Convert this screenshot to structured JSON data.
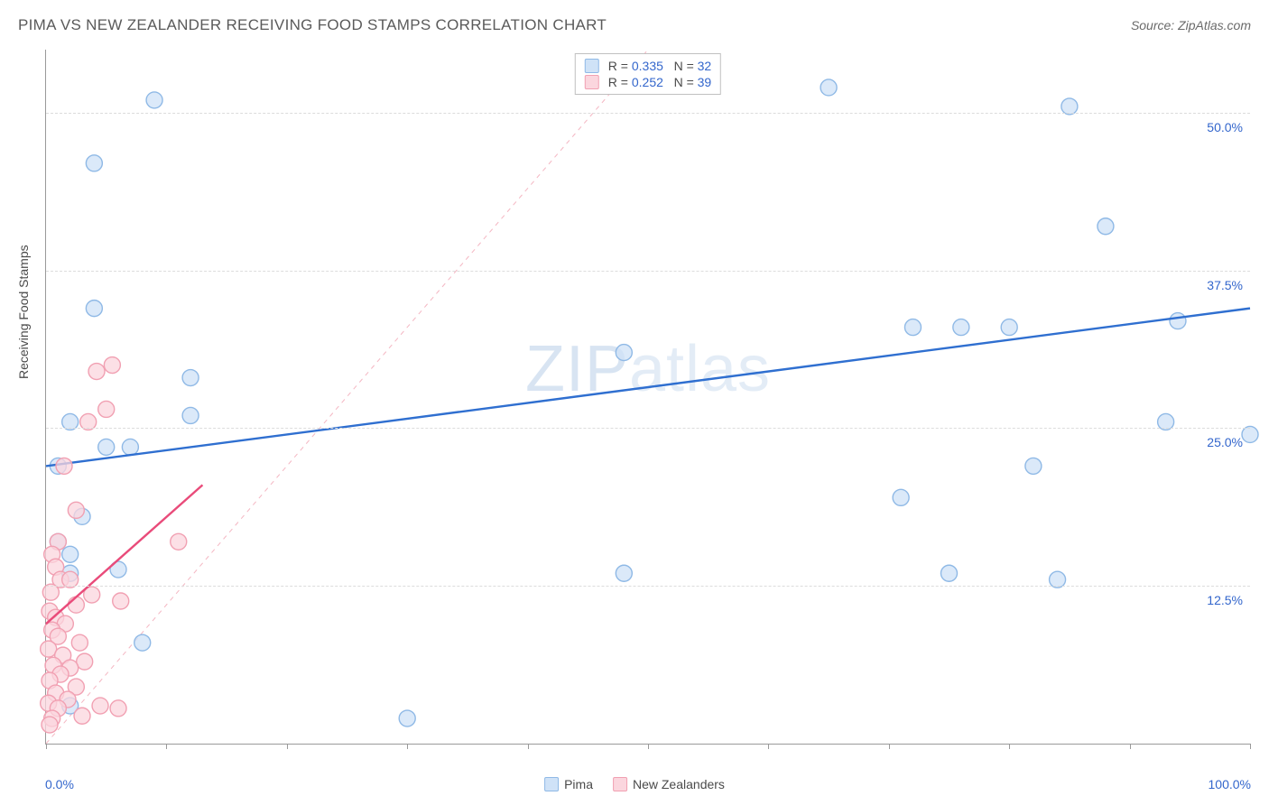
{
  "header": {
    "title": "PIMA VS NEW ZEALANDER RECEIVING FOOD STAMPS CORRELATION CHART",
    "source": "Source: ZipAtlas.com"
  },
  "watermark": {
    "bold": "ZIP",
    "light": "atlas"
  },
  "chart": {
    "type": "scatter",
    "ylabel": "Receiving Food Stamps",
    "xlim": [
      0,
      100
    ],
    "ylim": [
      0,
      55
    ],
    "background_color": "#ffffff",
    "grid_color": "#dcdcdc",
    "axis_color": "#9a9a9a",
    "marker_radius": 9,
    "marker_stroke_width": 1.4,
    "yticks": [
      {
        "value": 12.5,
        "label": "12.5%"
      },
      {
        "value": 25.0,
        "label": "25.0%"
      },
      {
        "value": 37.5,
        "label": "37.5%"
      },
      {
        "value": 50.0,
        "label": "50.0%"
      }
    ],
    "xticks_count": 11,
    "xaxis_labels": {
      "left": "0.0%",
      "right": "100.0%"
    },
    "series": [
      {
        "key": "pima",
        "name": "Pima",
        "fill": "#cfe2f7",
        "stroke": "#8fb9e6",
        "line_color": "#2f6fd0",
        "line_width": 2.4,
        "correlation_label": {
          "r": "0.335",
          "n": "32"
        },
        "regression": {
          "x1": 0,
          "y1": 22.0,
          "x2": 100,
          "y2": 34.5
        },
        "reference_line": {
          "x1": 0,
          "y1": 0,
          "x2": 50,
          "y2": 55,
          "color": "#f4b6c2",
          "dash": "5,5",
          "width": 1
        },
        "points": [
          {
            "x": 72,
            "y": 33
          },
          {
            "x": 76,
            "y": 33
          },
          {
            "x": 80,
            "y": 33
          },
          {
            "x": 94,
            "y": 33.5
          },
          {
            "x": 100,
            "y": 24.5
          },
          {
            "x": 93,
            "y": 25.5
          },
          {
            "x": 82,
            "y": 22
          },
          {
            "x": 71,
            "y": 19.5
          },
          {
            "x": 88,
            "y": 41
          },
          {
            "x": 85,
            "y": 50.5
          },
          {
            "x": 65,
            "y": 52
          },
          {
            "x": 84,
            "y": 13
          },
          {
            "x": 75,
            "y": 13.5
          },
          {
            "x": 48,
            "y": 13.5
          },
          {
            "x": 48,
            "y": 31
          },
          {
            "x": 9,
            "y": 51
          },
          {
            "x": 4,
            "y": 46
          },
          {
            "x": 4,
            "y": 34.5
          },
          {
            "x": 12,
            "y": 29
          },
          {
            "x": 12,
            "y": 26
          },
          {
            "x": 7,
            "y": 23.5
          },
          {
            "x": 5,
            "y": 23.5
          },
          {
            "x": 1,
            "y": 22
          },
          {
            "x": 3,
            "y": 18
          },
          {
            "x": 6,
            "y": 13.8
          },
          {
            "x": 2,
            "y": 13.5
          },
          {
            "x": 2,
            "y": 15
          },
          {
            "x": 1,
            "y": 16
          },
          {
            "x": 8,
            "y": 8
          },
          {
            "x": 30,
            "y": 2
          },
          {
            "x": 2,
            "y": 3
          },
          {
            "x": 2,
            "y": 25.5
          }
        ]
      },
      {
        "key": "nz",
        "name": "New Zealanders",
        "fill": "#fbd6de",
        "stroke": "#f1a0b2",
        "line_color": "#e94b7a",
        "line_width": 2.4,
        "correlation_label": {
          "r": "0.252",
          "n": "39"
        },
        "regression": {
          "x1": 0,
          "y1": 9.5,
          "x2": 13,
          "y2": 20.5
        },
        "points": [
          {
            "x": 5.5,
            "y": 30
          },
          {
            "x": 4.2,
            "y": 29.5
          },
          {
            "x": 1.5,
            "y": 22
          },
          {
            "x": 3.5,
            "y": 25.5
          },
          {
            "x": 5,
            "y": 26.5
          },
          {
            "x": 2.5,
            "y": 18.5
          },
          {
            "x": 11,
            "y": 16
          },
          {
            "x": 1.0,
            "y": 16
          },
          {
            "x": 0.5,
            "y": 15
          },
          {
            "x": 0.8,
            "y": 14
          },
          {
            "x": 1.2,
            "y": 13
          },
          {
            "x": 2.0,
            "y": 13
          },
          {
            "x": 0.4,
            "y": 12
          },
          {
            "x": 3.8,
            "y": 11.8
          },
          {
            "x": 2.5,
            "y": 11
          },
          {
            "x": 6.2,
            "y": 11.3
          },
          {
            "x": 0.3,
            "y": 10.5
          },
          {
            "x": 0.8,
            "y": 10
          },
          {
            "x": 1.6,
            "y": 9.5
          },
          {
            "x": 0.5,
            "y": 9
          },
          {
            "x": 1.0,
            "y": 8.5
          },
          {
            "x": 2.8,
            "y": 8
          },
          {
            "x": 0.2,
            "y": 7.5
          },
          {
            "x": 1.4,
            "y": 7
          },
          {
            "x": 3.2,
            "y": 6.5
          },
          {
            "x": 0.6,
            "y": 6.2
          },
          {
            "x": 2.0,
            "y": 6
          },
          {
            "x": 1.2,
            "y": 5.5
          },
          {
            "x": 0.3,
            "y": 5
          },
          {
            "x": 2.5,
            "y": 4.5
          },
          {
            "x": 4.5,
            "y": 3
          },
          {
            "x": 0.8,
            "y": 4
          },
          {
            "x": 1.8,
            "y": 3.5
          },
          {
            "x": 0.2,
            "y": 3.2
          },
          {
            "x": 1.0,
            "y": 2.8
          },
          {
            "x": 3.0,
            "y": 2.2
          },
          {
            "x": 0.5,
            "y": 2
          },
          {
            "x": 6.0,
            "y": 2.8
          },
          {
            "x": 0.3,
            "y": 1.5
          }
        ]
      }
    ],
    "legend_bottom": [
      {
        "label_key": "pima",
        "text": "Pima"
      },
      {
        "label_key": "nz",
        "text": "New Zealanders"
      }
    ]
  }
}
